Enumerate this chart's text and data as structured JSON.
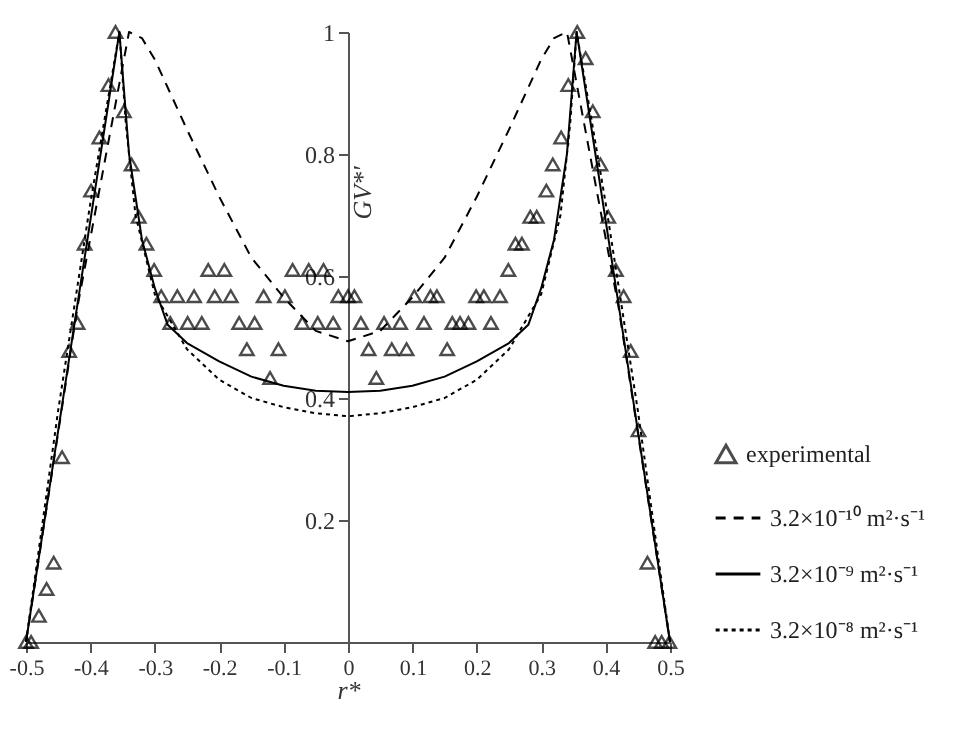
{
  "chart_data": {
    "type": "line",
    "xlabel": "r*",
    "ylabel": "GV*'",
    "xlim": [
      -0.5,
      0.5
    ],
    "ylim": [
      0,
      1
    ],
    "xticks": [
      -0.5,
      -0.4,
      -0.3,
      -0.2,
      -0.1,
      0,
      0.1,
      0.2,
      0.3,
      0.4,
      0.5
    ],
    "yticks": [
      0.2,
      0.4,
      0.6,
      0.8,
      1
    ],
    "grid": false,
    "legend": "bottom right",
    "series": [
      {
        "name": "experimental",
        "type": "scatter",
        "marker": "triangle",
        "color": "#000000",
        "x": [
          -0.5,
          -0.492,
          -0.48,
          -0.468,
          -0.457,
          -0.444,
          -0.433,
          -0.42,
          -0.409,
          -0.399,
          -0.386,
          -0.372,
          -0.361,
          -0.348,
          -0.336,
          -0.325,
          -0.313,
          -0.301,
          -0.217,
          -0.192,
          -0.086,
          -0.061,
          -0.038,
          -0.29,
          -0.265,
          -0.239,
          -0.207,
          -0.182,
          -0.131,
          -0.098,
          -0.015,
          0,
          0.01,
          -0.276,
          -0.249,
          -0.227,
          -0.169,
          -0.145,
          -0.071,
          -0.047,
          -0.023,
          -0.157,
          -0.108,
          -0.121,
          0.103,
          0.128,
          0.138,
          0.199,
          0.211,
          0.236,
          0.02,
          0.056,
          0.081,
          0.118,
          0.162,
          0.174,
          0.187,
          0.222,
          0.032,
          0.068,
          0.091,
          0.154,
          0.044,
          0.249,
          0.26,
          0.27,
          0.283,
          0.293,
          0.308,
          0.318,
          0.331,
          0.342,
          0.356,
          0.369,
          0.38,
          0.392,
          0.404,
          0.416,
          0.428,
          0.439,
          0.451,
          0.465,
          0.477,
          0.487,
          0.499
        ],
        "values": [
          0,
          0,
          0.043,
          0.087,
          0.13,
          0.303,
          0.477,
          0.523,
          0.653,
          0.74,
          0.827,
          0.913,
          1,
          0.87,
          0.783,
          0.697,
          0.653,
          0.61,
          0.61,
          0.61,
          0.61,
          0.61,
          0.61,
          0.567,
          0.567,
          0.567,
          0.567,
          0.567,
          0.567,
          0.567,
          0.567,
          0.567,
          0.567,
          0.523,
          0.523,
          0.523,
          0.523,
          0.523,
          0.523,
          0.523,
          0.523,
          0.48,
          0.48,
          0.433,
          0.567,
          0.567,
          0.567,
          0.567,
          0.567,
          0.567,
          0.523,
          0.523,
          0.523,
          0.523,
          0.523,
          0.523,
          0.523,
          0.523,
          0.48,
          0.48,
          0.48,
          0.48,
          0.433,
          0.61,
          0.653,
          0.653,
          0.697,
          0.697,
          0.74,
          0.783,
          0.827,
          0.913,
          1,
          0.957,
          0.87,
          0.783,
          0.697,
          0.61,
          0.567,
          0.477,
          0.347,
          0.13,
          0,
          0,
          0
        ]
      },
      {
        "name": "3.2×10⁻¹⁰ m²·s⁻¹",
        "type": "line",
        "line_style": "dashed",
        "color": "#000000",
        "x": [
          -0.5,
          -0.42,
          -0.34,
          -0.32,
          -0.3,
          -0.25,
          -0.2,
          -0.15,
          -0.1,
          -0.05,
          0,
          0.05,
          0.1,
          0.15,
          0.2,
          0.25,
          0.3,
          0.32,
          0.34,
          0.42,
          0.5
        ],
        "values": [
          0,
          0.55,
          1,
          0.99,
          0.955,
          0.84,
          0.73,
          0.63,
          0.565,
          0.51,
          0.493,
          0.51,
          0.565,
          0.63,
          0.73,
          0.84,
          0.955,
          0.99,
          1,
          0.55,
          0
        ]
      },
      {
        "name": "3.2×10⁻⁹ m²·s⁻¹",
        "type": "line",
        "line_style": "solid",
        "color": "#000000",
        "x": [
          -0.5,
          -0.425,
          -0.355,
          -0.34,
          -0.32,
          -0.3,
          -0.28,
          -0.25,
          -0.2,
          -0.15,
          -0.1,
          -0.05,
          0,
          0.05,
          0.1,
          0.15,
          0.2,
          0.25,
          0.28,
          0.3,
          0.32,
          0.34,
          0.355,
          0.425,
          0.5
        ],
        "values": [
          0,
          0.52,
          1,
          0.8,
          0.66,
          0.58,
          0.52,
          0.49,
          0.46,
          0.435,
          0.42,
          0.412,
          0.41,
          0.412,
          0.42,
          0.435,
          0.46,
          0.49,
          0.52,
          0.58,
          0.66,
          0.8,
          1,
          0.52,
          0
        ]
      },
      {
        "name": "3.2×10⁻⁸ m²·s⁻¹",
        "type": "line",
        "line_style": "dotted",
        "color": "#000000",
        "x": [
          -0.5,
          -0.45,
          -0.4,
          -0.355,
          -0.345,
          -0.33,
          -0.3,
          -0.25,
          -0.2,
          -0.15,
          -0.1,
          -0.05,
          0,
          0.05,
          0.1,
          0.15,
          0.2,
          0.25,
          0.3,
          0.33,
          0.345,
          0.355,
          0.4,
          0.45,
          0.5
        ],
        "values": [
          0,
          0.38,
          0.72,
          1,
          0.85,
          0.7,
          0.57,
          0.48,
          0.43,
          0.4,
          0.385,
          0.375,
          0.37,
          0.375,
          0.385,
          0.4,
          0.43,
          0.48,
          0.57,
          0.7,
          0.85,
          1,
          0.72,
          0.38,
          0
        ]
      }
    ]
  }
}
